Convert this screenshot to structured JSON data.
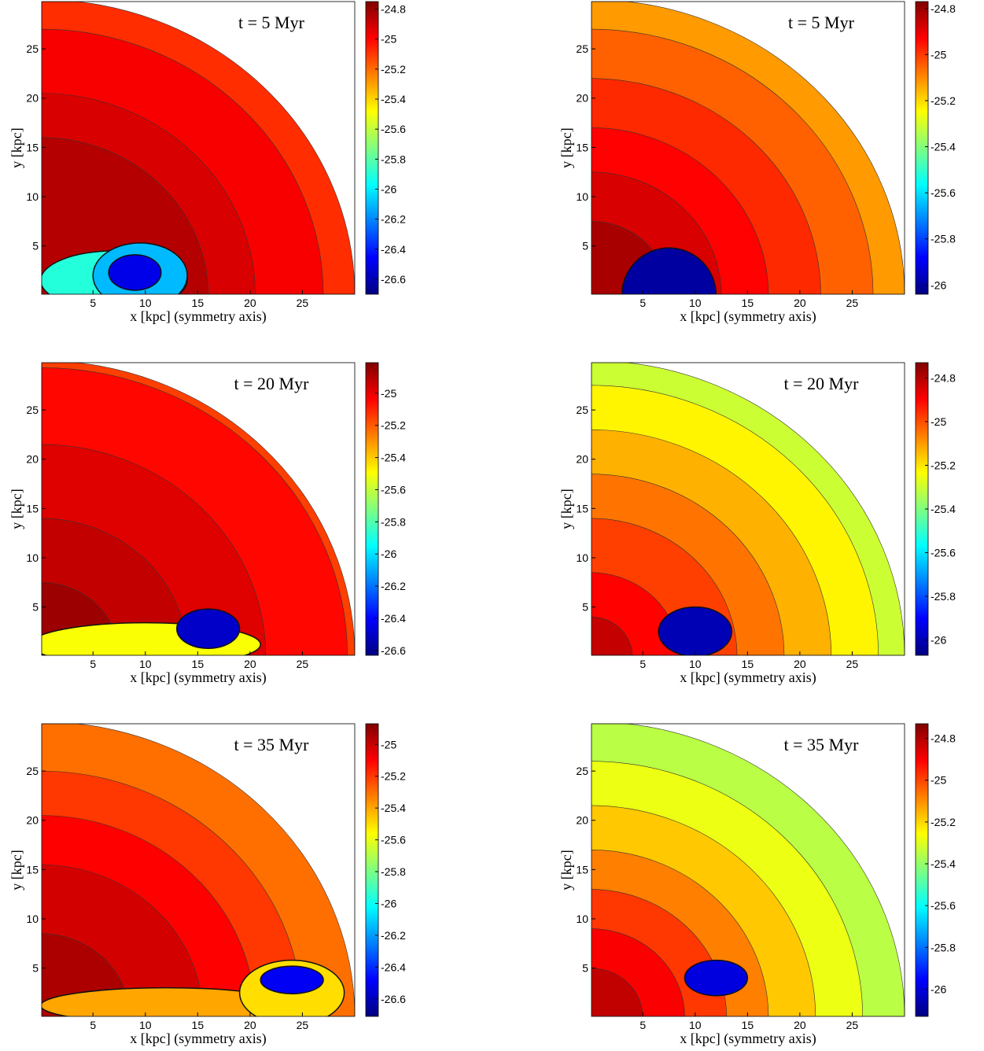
{
  "chart_data": [
    {
      "type": "contour",
      "title": "t = 5 Myr",
      "xlabel": "x [kpc] (symmetry axis)",
      "ylabel": "y [kpc]",
      "xlim": [
        0.1,
        30
      ],
      "ylim": [
        0.1,
        29.8
      ],
      "xticks": [
        5,
        10,
        15,
        20,
        25
      ],
      "yticks": [
        5,
        10,
        15,
        20,
        25
      ],
      "colormap": "jet",
      "clim": [
        -26.7,
        -24.75
      ],
      "cticks": [
        -24.8,
        -25,
        -25.2,
        -25.4,
        -25.6,
        -25.8,
        -26,
        -26.2,
        -26.4,
        -26.6
      ],
      "bands": [
        {
          "r": 30,
          "level": -25.08
        },
        {
          "r": 27,
          "level": -24.98
        },
        {
          "r": 20.5,
          "level": -24.92
        },
        {
          "r": 16,
          "level": -24.85
        }
      ],
      "bubbles": [
        {
          "x": 7,
          "y": 1.5,
          "rx": 7,
          "ry": 3,
          "level": -25.9
        },
        {
          "x": 9.5,
          "y": 2,
          "rx": 4.5,
          "ry": 3.3,
          "level": -26.1
        },
        {
          "x": 9,
          "y": 2.3,
          "rx": 2.5,
          "ry": 1.8,
          "level": -26.5
        }
      ]
    },
    {
      "type": "contour",
      "title": "t = 5 Myr",
      "xlabel": "x [kpc] (symmetry axis)",
      "ylabel": "y [kpc]",
      "xlim": [
        0.1,
        30
      ],
      "ylim": [
        0.1,
        29.8
      ],
      "xticks": [
        5,
        10,
        15,
        20,
        25
      ],
      "yticks": [
        5,
        10,
        15,
        20,
        25
      ],
      "colormap": "jet",
      "clim": [
        -26.04,
        -24.77
      ],
      "cticks": [
        -24.8,
        -25,
        -25.2,
        -25.4,
        -25.6,
        -25.8,
        -26
      ],
      "bands": [
        {
          "r": 30,
          "level": -25.12
        },
        {
          "r": 27,
          "level": -25.05
        },
        {
          "r": 22,
          "level": -24.98
        },
        {
          "r": 17,
          "level": -24.93
        },
        {
          "r": 12.5,
          "level": -24.88
        },
        {
          "r": 7.5,
          "level": -24.82
        }
      ],
      "bubbles": [
        {
          "x": 7.5,
          "y": 0,
          "rx": 4.5,
          "ry": 4.8,
          "level": -26
        }
      ]
    },
    {
      "type": "contour",
      "title": "t = 20 Myr",
      "xlabel": "x [kpc] (symmetry axis)",
      "ylabel": "y [kpc]",
      "xlim": [
        0.1,
        30
      ],
      "ylim": [
        0.1,
        29.8
      ],
      "xticks": [
        5,
        10,
        15,
        20,
        25
      ],
      "yticks": [
        5,
        10,
        15,
        20,
        25
      ],
      "colormap": "jet",
      "clim": [
        -26.63,
        -24.81
      ],
      "cticks": [
        -25,
        -25.2,
        -25.4,
        -25.6,
        -25.8,
        -26,
        -26.2,
        -26.4,
        -26.6
      ],
      "bands": [
        {
          "r": 30,
          "level": -25.15
        },
        {
          "r": 29.3,
          "level": -25.05
        },
        {
          "r": 21.5,
          "level": -24.98
        },
        {
          "r": 14,
          "level": -24.93
        },
        {
          "r": 7.5,
          "level": -24.86
        }
      ],
      "bubbles": [
        {
          "x": 10,
          "y": 1.2,
          "rx": 11,
          "ry": 2.2,
          "level": -25.5
        },
        {
          "x": 16,
          "y": 2.8,
          "rx": 3,
          "ry": 2,
          "level": -26.5
        }
      ]
    },
    {
      "type": "contour",
      "title": "t = 20 Myr",
      "xlabel": "x [kpc] (symmetry axis)",
      "ylabel": "y [kpc]",
      "xlim": [
        0.1,
        30
      ],
      "ylim": [
        0.1,
        29.8
      ],
      "xticks": [
        5,
        10,
        15,
        20,
        25
      ],
      "yticks": [
        5,
        10,
        15,
        20,
        25
      ],
      "colormap": "jet",
      "clim": [
        -26.07,
        -24.73
      ],
      "cticks": [
        -24.8,
        -25,
        -25.2,
        -25.4,
        -25.6,
        -25.8,
        -26
      ],
      "bands": [
        {
          "r": 30,
          "level": -25.3
        },
        {
          "r": 27.5,
          "level": -25.22
        },
        {
          "r": 23,
          "level": -25.13
        },
        {
          "r": 18.5,
          "level": -25.05
        },
        {
          "r": 14,
          "level": -24.98
        },
        {
          "r": 8.5,
          "level": -24.9
        },
        {
          "r": 4,
          "level": -24.82
        }
      ],
      "bubbles": [
        {
          "x": 10,
          "y": 2.5,
          "rx": 3.5,
          "ry": 2.5,
          "level": -26
        }
      ]
    },
    {
      "type": "contour",
      "title": "t = 35 Myr",
      "xlabel": "x [kpc] (symmetry axis)",
      "ylabel": "y [kpc]",
      "xlim": [
        0.1,
        30
      ],
      "ylim": [
        0.1,
        29.8
      ],
      "xticks": [
        5,
        10,
        15,
        20,
        25
      ],
      "yticks": [
        5,
        10,
        15,
        20,
        25
      ],
      "colormap": "jet",
      "clim": [
        -26.71,
        -24.87
      ],
      "cticks": [
        -25,
        -25.2,
        -25.4,
        -25.6,
        -25.8,
        -26,
        -26.2,
        -26.4,
        -26.6
      ],
      "bands": [
        {
          "r": 30,
          "level": -25.3
        },
        {
          "r": 25,
          "level": -25.2
        },
        {
          "r": 20.5,
          "level": -25.1
        },
        {
          "r": 15.5,
          "level": -25.02
        },
        {
          "r": 8.5,
          "level": -24.95
        }
      ],
      "bubbles": [
        {
          "x": 12,
          "y": 1.2,
          "rx": 12,
          "ry": 1.8,
          "level": -25.4
        },
        {
          "x": 24,
          "y": 2.5,
          "rx": 5,
          "ry": 3.3,
          "level": -25.5
        },
        {
          "x": 24,
          "y": 3.8,
          "rx": 3,
          "ry": 1.4,
          "level": -26.5
        }
      ]
    },
    {
      "type": "contour",
      "title": "t = 35 Myr",
      "xlabel": "x [kpc] (symmetry axis)",
      "ylabel": "y [kpc]",
      "xlim": [
        0.1,
        30
      ],
      "ylim": [
        0.1,
        29.8
      ],
      "xticks": [
        5,
        10,
        15,
        20,
        25
      ],
      "yticks": [
        5,
        10,
        15,
        20,
        25
      ],
      "colormap": "jet",
      "clim": [
        -26.13,
        -24.73
      ],
      "cticks": [
        -24.8,
        -25,
        -25.2,
        -25.4,
        -25.6,
        -25.8,
        -26
      ],
      "bands": [
        {
          "r": 30,
          "level": -25.35
        },
        {
          "r": 26,
          "level": -25.28
        },
        {
          "r": 21.5,
          "level": -25.18
        },
        {
          "r": 17,
          "level": -25.08
        },
        {
          "r": 13,
          "level": -24.98
        },
        {
          "r": 9,
          "level": -24.9
        },
        {
          "r": 5,
          "level": -24.82
        }
      ],
      "bubbles": [
        {
          "x": 12,
          "y": 4,
          "rx": 3,
          "ry": 1.8,
          "level": -26
        }
      ]
    }
  ]
}
